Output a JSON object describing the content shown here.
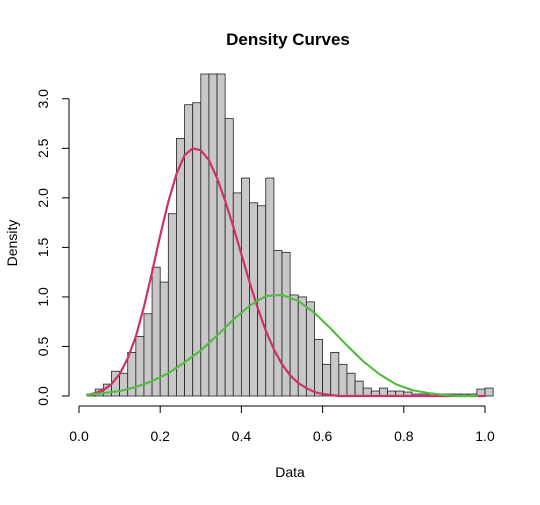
{
  "chart_data": {
    "type": "bar",
    "title": "Density Curves",
    "xlabel": "Data",
    "ylabel": "Density",
    "xlim": [
      0.0,
      1.0
    ],
    "ylim": [
      0.0,
      3.25
    ],
    "x_ticks": [
      0.0,
      0.2,
      0.4,
      0.6,
      0.8,
      1.0
    ],
    "x_tick_labels": [
      "0.0",
      "0.2",
      "0.4",
      "0.6",
      "0.8",
      "1.0"
    ],
    "y_ticks": [
      0.0,
      0.5,
      1.0,
      1.5,
      2.0,
      2.5,
      3.0
    ],
    "y_tick_labels": [
      "0.0",
      "0.5",
      "1.0",
      "1.5",
      "2.0",
      "2.5",
      "3.0"
    ],
    "grid": false,
    "histogram": {
      "bin_width": 0.02,
      "bin_start": 0.02,
      "heights": [
        0.02,
        0.07,
        0.12,
        0.25,
        0.23,
        0.44,
        0.6,
        0.83,
        1.3,
        1.15,
        1.84,
        2.6,
        2.94,
        2.96,
        3.3,
        3.25,
        3.3,
        2.8,
        2.05,
        2.2,
        1.95,
        1.92,
        2.2,
        1.47,
        1.45,
        1.02,
        1.0,
        0.95,
        0.57,
        0.32,
        0.44,
        0.32,
        0.23,
        0.15,
        0.08,
        0.05,
        0.08,
        0.05,
        0.05,
        0.04,
        0.02,
        0.02,
        0.02,
        0.02,
        0.02,
        0.02,
        0.02,
        0.02,
        0.07,
        0.08
      ]
    },
    "series": [
      {
        "type": "line",
        "color": "#cc3366",
        "x": [
          0.02,
          0.04,
          0.06,
          0.08,
          0.1,
          0.12,
          0.14,
          0.16,
          0.18,
          0.2,
          0.22,
          0.24,
          0.26,
          0.28,
          0.3,
          0.32,
          0.34,
          0.36,
          0.38,
          0.4,
          0.42,
          0.44,
          0.46,
          0.48,
          0.5,
          0.52,
          0.54,
          0.56,
          0.58,
          0.6,
          0.62,
          0.64,
          0.66,
          0.7,
          0.8,
          0.9,
          1.0
        ],
        "y": [
          0.01,
          0.03,
          0.06,
          0.12,
          0.22,
          0.38,
          0.6,
          0.9,
          1.25,
          1.62,
          1.96,
          2.24,
          2.43,
          2.5,
          2.48,
          2.38,
          2.2,
          1.97,
          1.71,
          1.43,
          1.15,
          0.89,
          0.66,
          0.47,
          0.32,
          0.21,
          0.13,
          0.08,
          0.04,
          0.02,
          0.01,
          0.0,
          0.0,
          0.0,
          0.0,
          0.0,
          0.0
        ]
      },
      {
        "type": "line",
        "color": "#55bb44",
        "x": [
          0.02,
          0.06,
          0.1,
          0.14,
          0.18,
          0.22,
          0.26,
          0.3,
          0.34,
          0.38,
          0.42,
          0.46,
          0.5,
          0.54,
          0.58,
          0.62,
          0.66,
          0.7,
          0.74,
          0.78,
          0.82,
          0.86,
          0.9,
          0.94,
          0.98
        ],
        "y": [
          0.01,
          0.03,
          0.05,
          0.09,
          0.15,
          0.23,
          0.34,
          0.46,
          0.61,
          0.77,
          0.91,
          1.01,
          1.02,
          0.96,
          0.84,
          0.68,
          0.51,
          0.35,
          0.22,
          0.12,
          0.06,
          0.03,
          0.01,
          0.0,
          0.0
        ]
      }
    ]
  }
}
